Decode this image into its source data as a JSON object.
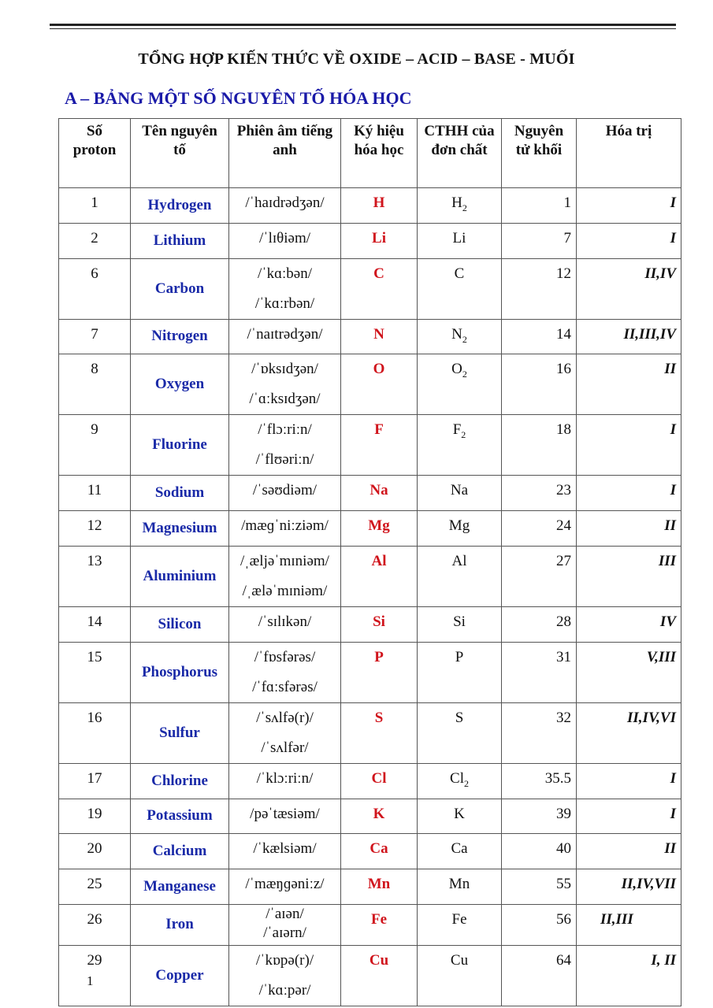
{
  "title": "TỔNG HỢP KIẾN THỨC VỀ OXIDE – ACID – BASE - MUỐI",
  "section": "A – BẢNG MỘT SỐ NGUYÊN TỐ HÓA HỌC",
  "headers": [
    "Số proton",
    "Tên nguyên tố",
    "Phiên âm tiếng anh",
    "Ký hiệu hóa học",
    "CTHH của đơn chất",
    "Nguyên tử khối",
    "Hóa trị"
  ],
  "rows": [
    {
      "p": "1",
      "name": "Hydrogen",
      "ph": [
        "/ˈhaɪdrədʒən/"
      ],
      "sym": "H",
      "f": "H",
      "fs": "2",
      "m": "1",
      "v": "I"
    },
    {
      "p": "2",
      "name": "Lithium",
      "ph": [
        "/ˈlɪθiəm/"
      ],
      "sym": "Li",
      "f": "Li",
      "fs": "",
      "m": "7",
      "v": "I"
    },
    {
      "p": "6",
      "name": "Carbon",
      "ph": [
        "/ˈkɑːbən/",
        "/ˈkɑːrbən/"
      ],
      "sym": "C",
      "f": "C",
      "fs": "",
      "m": "12",
      "v": "II,IV"
    },
    {
      "p": "7",
      "name": "Nitrogen",
      "ph": [
        "/ˈnaɪtrədʒən/"
      ],
      "sym": "N",
      "f": "N",
      "fs": "2",
      "m": "14",
      "v": "II,III,IV"
    },
    {
      "p": "8",
      "name": "Oxygen",
      "ph": [
        "/ˈɒksɪdʒən/",
        "/ˈɑːksɪdʒən/"
      ],
      "sym": "O",
      "f": "O",
      "fs": "2",
      "m": "16",
      "v": "II"
    },
    {
      "p": "9",
      "name": "Fluorine",
      "ph": [
        "/ˈflɔːriːn/",
        "/ˈflʊəriːn/"
      ],
      "sym": "F",
      "f": "F",
      "fs": "2",
      "m": "18",
      "v": "I"
    },
    {
      "p": "11",
      "name": "Sodium",
      "ph": [
        "/ˈsəʊdiəm/"
      ],
      "sym": "Na",
      "f": "Na",
      "fs": "",
      "m": "23",
      "v": "I"
    },
    {
      "p": "12",
      "name": "Magnesium",
      "ph": [
        "/mæɡˈniːziəm/"
      ],
      "sym": "Mg",
      "f": "Mg",
      "fs": "",
      "m": "24",
      "v": "II"
    },
    {
      "p": "13",
      "name": "Aluminium",
      "ph": [
        "/ˌæljəˈmɪniəm/",
        "/ˌæləˈmɪniəm/"
      ],
      "sym": "Al",
      "f": "Al",
      "fs": "",
      "m": "27",
      "v": "III"
    },
    {
      "p": "14",
      "name": "Silicon",
      "ph": [
        "/ˈsɪlɪkən/"
      ],
      "sym": "Si",
      "f": "Si",
      "fs": "",
      "m": "28",
      "v": "IV"
    },
    {
      "p": "15",
      "name": "Phosphorus",
      "ph": [
        "/ˈfɒsfərəs/",
        "/ˈfɑːsfərəs/"
      ],
      "sym": "P",
      "f": "P",
      "fs": "",
      "m": "31",
      "v": "V,III"
    },
    {
      "p": "16",
      "name": "Sulfur",
      "ph": [
        "/ˈsʌlfə(r)/",
        "/ˈsʌlfər/"
      ],
      "sym": "S",
      "f": "S",
      "fs": "",
      "m": "32",
      "v": "II,IV,VI"
    },
    {
      "p": "17",
      "name": "Chlorine",
      "ph": [
        "/ˈklɔːriːn/"
      ],
      "sym": "Cl",
      "f": "Cl",
      "fs": "2",
      "m": "35.5",
      "v": "I"
    },
    {
      "p": "19",
      "name": "Potassium",
      "ph": [
        "/pəˈtæsiəm/"
      ],
      "sym": "K",
      "f": "K",
      "fs": "",
      "m": "39",
      "v": "I"
    },
    {
      "p": "20",
      "name": "Calcium",
      "ph": [
        "/ˈkælsiəm/"
      ],
      "sym": "Ca",
      "f": "Ca",
      "fs": "",
      "m": "40",
      "v": "II"
    },
    {
      "p": "25",
      "name": "Manganese",
      "ph": [
        "/ˈmæŋɡəniːz/"
      ],
      "sym": "Mn",
      "f": "Mn",
      "fs": "",
      "m": "55",
      "v": "II,IV,VII"
    },
    {
      "p": "26",
      "name": "Iron",
      "ph": [
        "/ˈaɪən/",
        "/ˈaɪərn/"
      ],
      "sym": "Fe",
      "f": "Fe",
      "fs": "",
      "m": "56",
      "v": "II,III"
    },
    {
      "p": "29",
      "name": "Copper",
      "ph": [
        "/ˈkɒpə(r)/",
        "/ˈkɑːpər/"
      ],
      "sym": "Cu",
      "f": "Cu",
      "fs": "",
      "m": "64",
      "v": "I, II"
    }
  ],
  "page_number": "1"
}
